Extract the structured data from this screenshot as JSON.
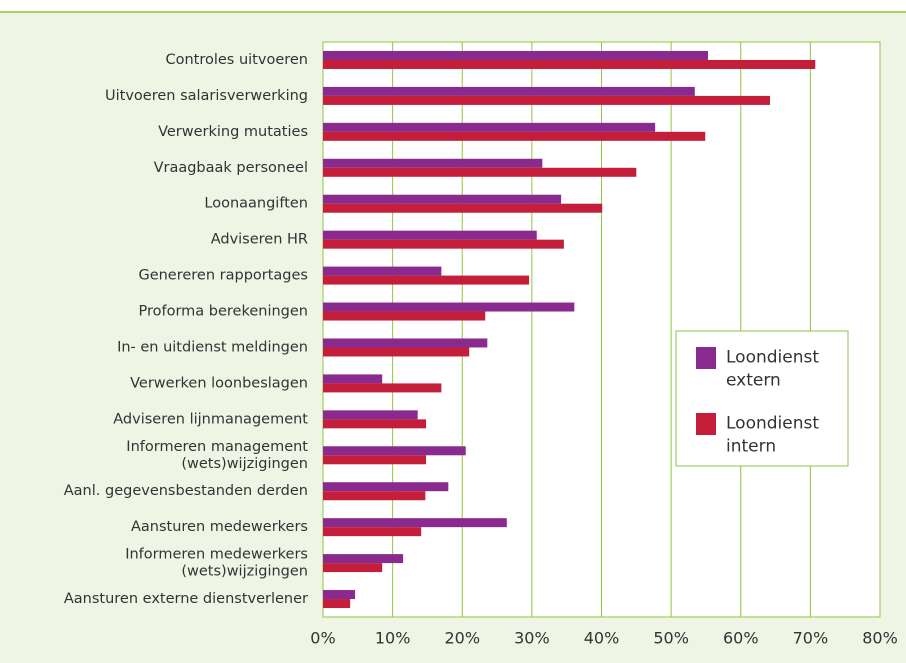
{
  "chart_data": {
    "type": "bar",
    "orientation": "horizontal",
    "categories": [
      "Controles uitvoeren",
      "Uitvoeren salarisverwerking",
      "Verwerking mutaties",
      "Vraagbaak personeel",
      "Loonaangiften",
      "Adviseren HR",
      "Genereren rapportages",
      "Proforma berekeningen",
      "In- en uitdienst meldingen",
      "Verwerken loonbeslagen",
      "Adviseren lijnmanagement",
      "Informeren management\n(wets)wijzigingen",
      "Aanl. gegevensbestanden derden",
      "Aansturen medewerkers",
      "Informeren medewerkers\n(wets)wijzigingen",
      "Aansturen externe dienstverlener"
    ],
    "series": [
      {
        "name": "Loondienst extern",
        "color": "#8b2a8e",
        "values": [
          55.3,
          53.4,
          47.7,
          31.5,
          34.2,
          30.7,
          17.0,
          36.1,
          23.6,
          8.5,
          13.6,
          20.5,
          18.0,
          26.4,
          11.5,
          4.6
        ]
      },
      {
        "name": "Loondienst intern",
        "color": "#c41e3a",
        "values": [
          70.7,
          64.2,
          54.9,
          45.0,
          40.1,
          34.6,
          29.6,
          23.3,
          21.0,
          17.0,
          14.8,
          14.8,
          14.7,
          14.1,
          8.5,
          3.9
        ]
      }
    ],
    "xlim": [
      0,
      80
    ],
    "xticks": [
      {
        "value": 0,
        "label": "0%"
      },
      {
        "value": 10,
        "label": "10%"
      },
      {
        "value": 20,
        "label": "20%"
      },
      {
        "value": 30,
        "label": "30%"
      },
      {
        "value": 40,
        "label": "40%"
      },
      {
        "value": 50,
        "label": "50%"
      },
      {
        "value": 60,
        "label": "60%"
      },
      {
        "value": 70,
        "label": "70%"
      },
      {
        "value": 80,
        "label": "80%"
      }
    ],
    "grid": true,
    "legend": "right"
  }
}
